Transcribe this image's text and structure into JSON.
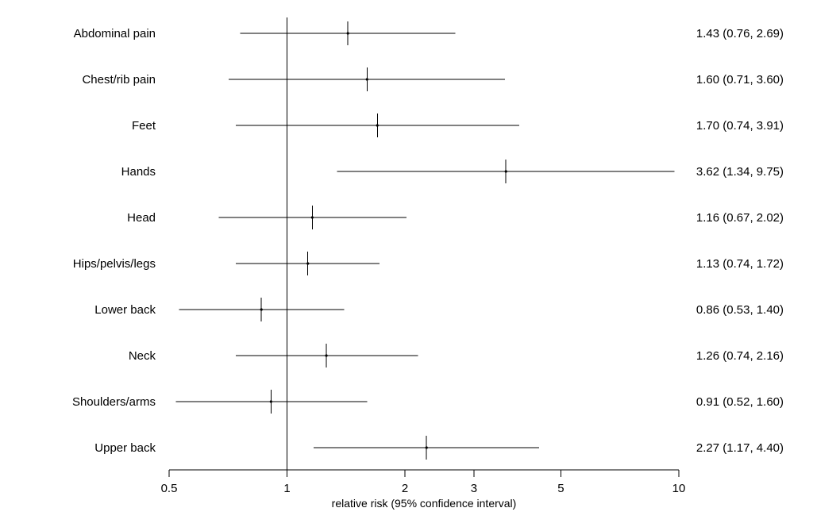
{
  "chart_data": {
    "type": "forest",
    "xlabel": "relative risk (95% confidence interval)",
    "xscale": "log",
    "xlim": [
      0.5,
      10
    ],
    "reference_line": 1,
    "xticks": [
      {
        "value": 0.5,
        "label": "0.5"
      },
      {
        "value": 1,
        "label": "1"
      },
      {
        "value": 2,
        "label": "2"
      },
      {
        "value": 3,
        "label": "3"
      },
      {
        "value": 5,
        "label": "5"
      },
      {
        "value": 10,
        "label": "10"
      }
    ],
    "rows": [
      {
        "label": "Abdominal pain",
        "estimate": 1.43,
        "lower": 0.76,
        "upper": 2.69,
        "ci_text": "1.43 (0.76, 2.69)"
      },
      {
        "label": "Chest/rib pain",
        "estimate": 1.6,
        "lower": 0.71,
        "upper": 3.6,
        "ci_text": "1.60 (0.71, 3.60)"
      },
      {
        "label": "Feet",
        "estimate": 1.7,
        "lower": 0.74,
        "upper": 3.91,
        "ci_text": "1.70 (0.74, 3.91)"
      },
      {
        "label": "Hands",
        "estimate": 3.62,
        "lower": 1.34,
        "upper": 9.75,
        "ci_text": "3.62 (1.34, 9.75)"
      },
      {
        "label": "Head",
        "estimate": 1.16,
        "lower": 0.67,
        "upper": 2.02,
        "ci_text": "1.16 (0.67, 2.02)"
      },
      {
        "label": "Hips/pelvis/legs",
        "estimate": 1.13,
        "lower": 0.74,
        "upper": 1.72,
        "ci_text": "1.13 (0.74, 1.72)"
      },
      {
        "label": "Lower back",
        "estimate": 0.86,
        "lower": 0.53,
        "upper": 1.4,
        "ci_text": "0.86 (0.53, 1.40)"
      },
      {
        "label": "Neck",
        "estimate": 1.26,
        "lower": 0.74,
        "upper": 2.16,
        "ci_text": "1.26 (0.74, 2.16)"
      },
      {
        "label": "Shoulders/arms",
        "estimate": 0.91,
        "lower": 0.52,
        "upper": 1.6,
        "ci_text": "0.91 (0.52, 1.60)"
      },
      {
        "label": "Upper back",
        "estimate": 2.27,
        "lower": 1.17,
        "upper": 4.4,
        "ci_text": "2.27 (1.17, 4.40)"
      }
    ]
  }
}
